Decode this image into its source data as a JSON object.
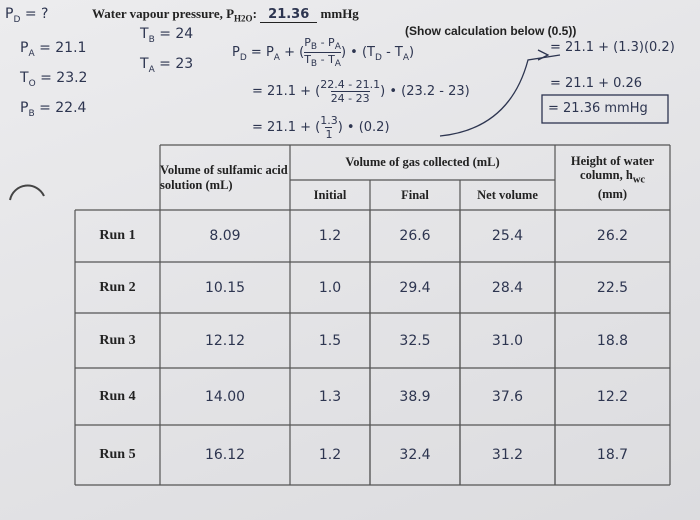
{
  "header": {
    "label": "Water vapour pressure, P",
    "label_sub": "H2O",
    "label_end": ":",
    "value": "21.36",
    "unit": "mmHg",
    "note": "(Show calculation below (0.5))"
  },
  "given": [
    {
      "x": [
        {
          "t": "P",
          "s": "D"
        },
        {
          "t": " = ?"
        }
      ]
    },
    {
      "x": [
        {
          "t": "P",
          "s": "A"
        },
        {
          "t": " = 21.1"
        }
      ]
    },
    {
      "x": [
        {
          "t": "T",
          "s": "O"
        },
        {
          "t": " = 23.2"
        }
      ]
    },
    {
      "x": [
        {
          "t": "P",
          "s": "B"
        },
        {
          "t": " = 22.4"
        }
      ]
    },
    {
      "x": [
        {
          "t": "T",
          "s": "B"
        },
        {
          "t": " = 24"
        }
      ]
    },
    {
      "x": [
        {
          "t": "T",
          "s": "A"
        },
        {
          "t": " = 23"
        }
      ]
    }
  ],
  "calc": [
    {
      "lead": [
        {
          "t": "P",
          "s": "D"
        },
        {
          "t": " = P",
          "s": "A"
        },
        {
          "t": " + ("
        }
      ],
      "num": [
        {
          "t": "P",
          "s": "B"
        },
        {
          "t": " - P",
          "s": "A"
        }
      ],
      "den": [
        {
          "t": "T",
          "s": "B"
        },
        {
          "t": " - T",
          "s": "A"
        }
      ],
      "tail": [
        {
          "t": ") • (T",
          "s": "D"
        },
        {
          "t": " - T",
          "s": "A"
        },
        {
          "t": ")"
        }
      ]
    },
    {
      "lead": [
        {
          "t": "= 21.1 + ("
        }
      ],
      "num": [
        {
          "t": "22.4 - 21.1"
        }
      ],
      "den": [
        {
          "t": "24 - 23"
        }
      ],
      "tail": [
        {
          "t": ") • (23.2 - 23)"
        }
      ]
    },
    {
      "lead": [
        {
          "t": "= 21.1 + ("
        }
      ],
      "num": [
        {
          "t": "1.3"
        }
      ],
      "den": [
        {
          "t": "1"
        }
      ],
      "tail": [
        {
          "t": ") • (0.2)"
        }
      ]
    }
  ],
  "result": [
    "= 21.1 + (1.3)(0.2)",
    "= 21.1 + 0.26",
    "= 21.36 mmHg"
  ],
  "table": {
    "col_acid": "Volume of sulfamic acid solution (mL)",
    "col_gas": "Volume of gas collected (mL)",
    "col_initial": "Initial",
    "col_final": "Final",
    "col_net": "Net volume",
    "col_height": {
      "text": "Height of water column, h",
      "sub": "wc",
      "end": "(mm)"
    },
    "rows": [
      {
        "label": "Run 1",
        "cells": [
          "8.09",
          "1.2",
          "26.6",
          "25.4",
          "26.2"
        ]
      },
      {
        "label": "Run 2",
        "cells": [
          "10.15",
          "1.0",
          "29.4",
          "28.4",
          "22.5"
        ]
      },
      {
        "label": "Run 3",
        "cells": [
          "12.12",
          "1.5",
          "32.5",
          "31.0",
          "18.8"
        ]
      },
      {
        "label": "Run 4",
        "cells": [
          "14.00",
          "1.3",
          "38.9",
          "37.6",
          "12.2"
        ]
      },
      {
        "label": "Run 5",
        "cells": [
          "16.12",
          "1.2",
          "32.4",
          "31.2",
          "18.7"
        ]
      }
    ]
  }
}
